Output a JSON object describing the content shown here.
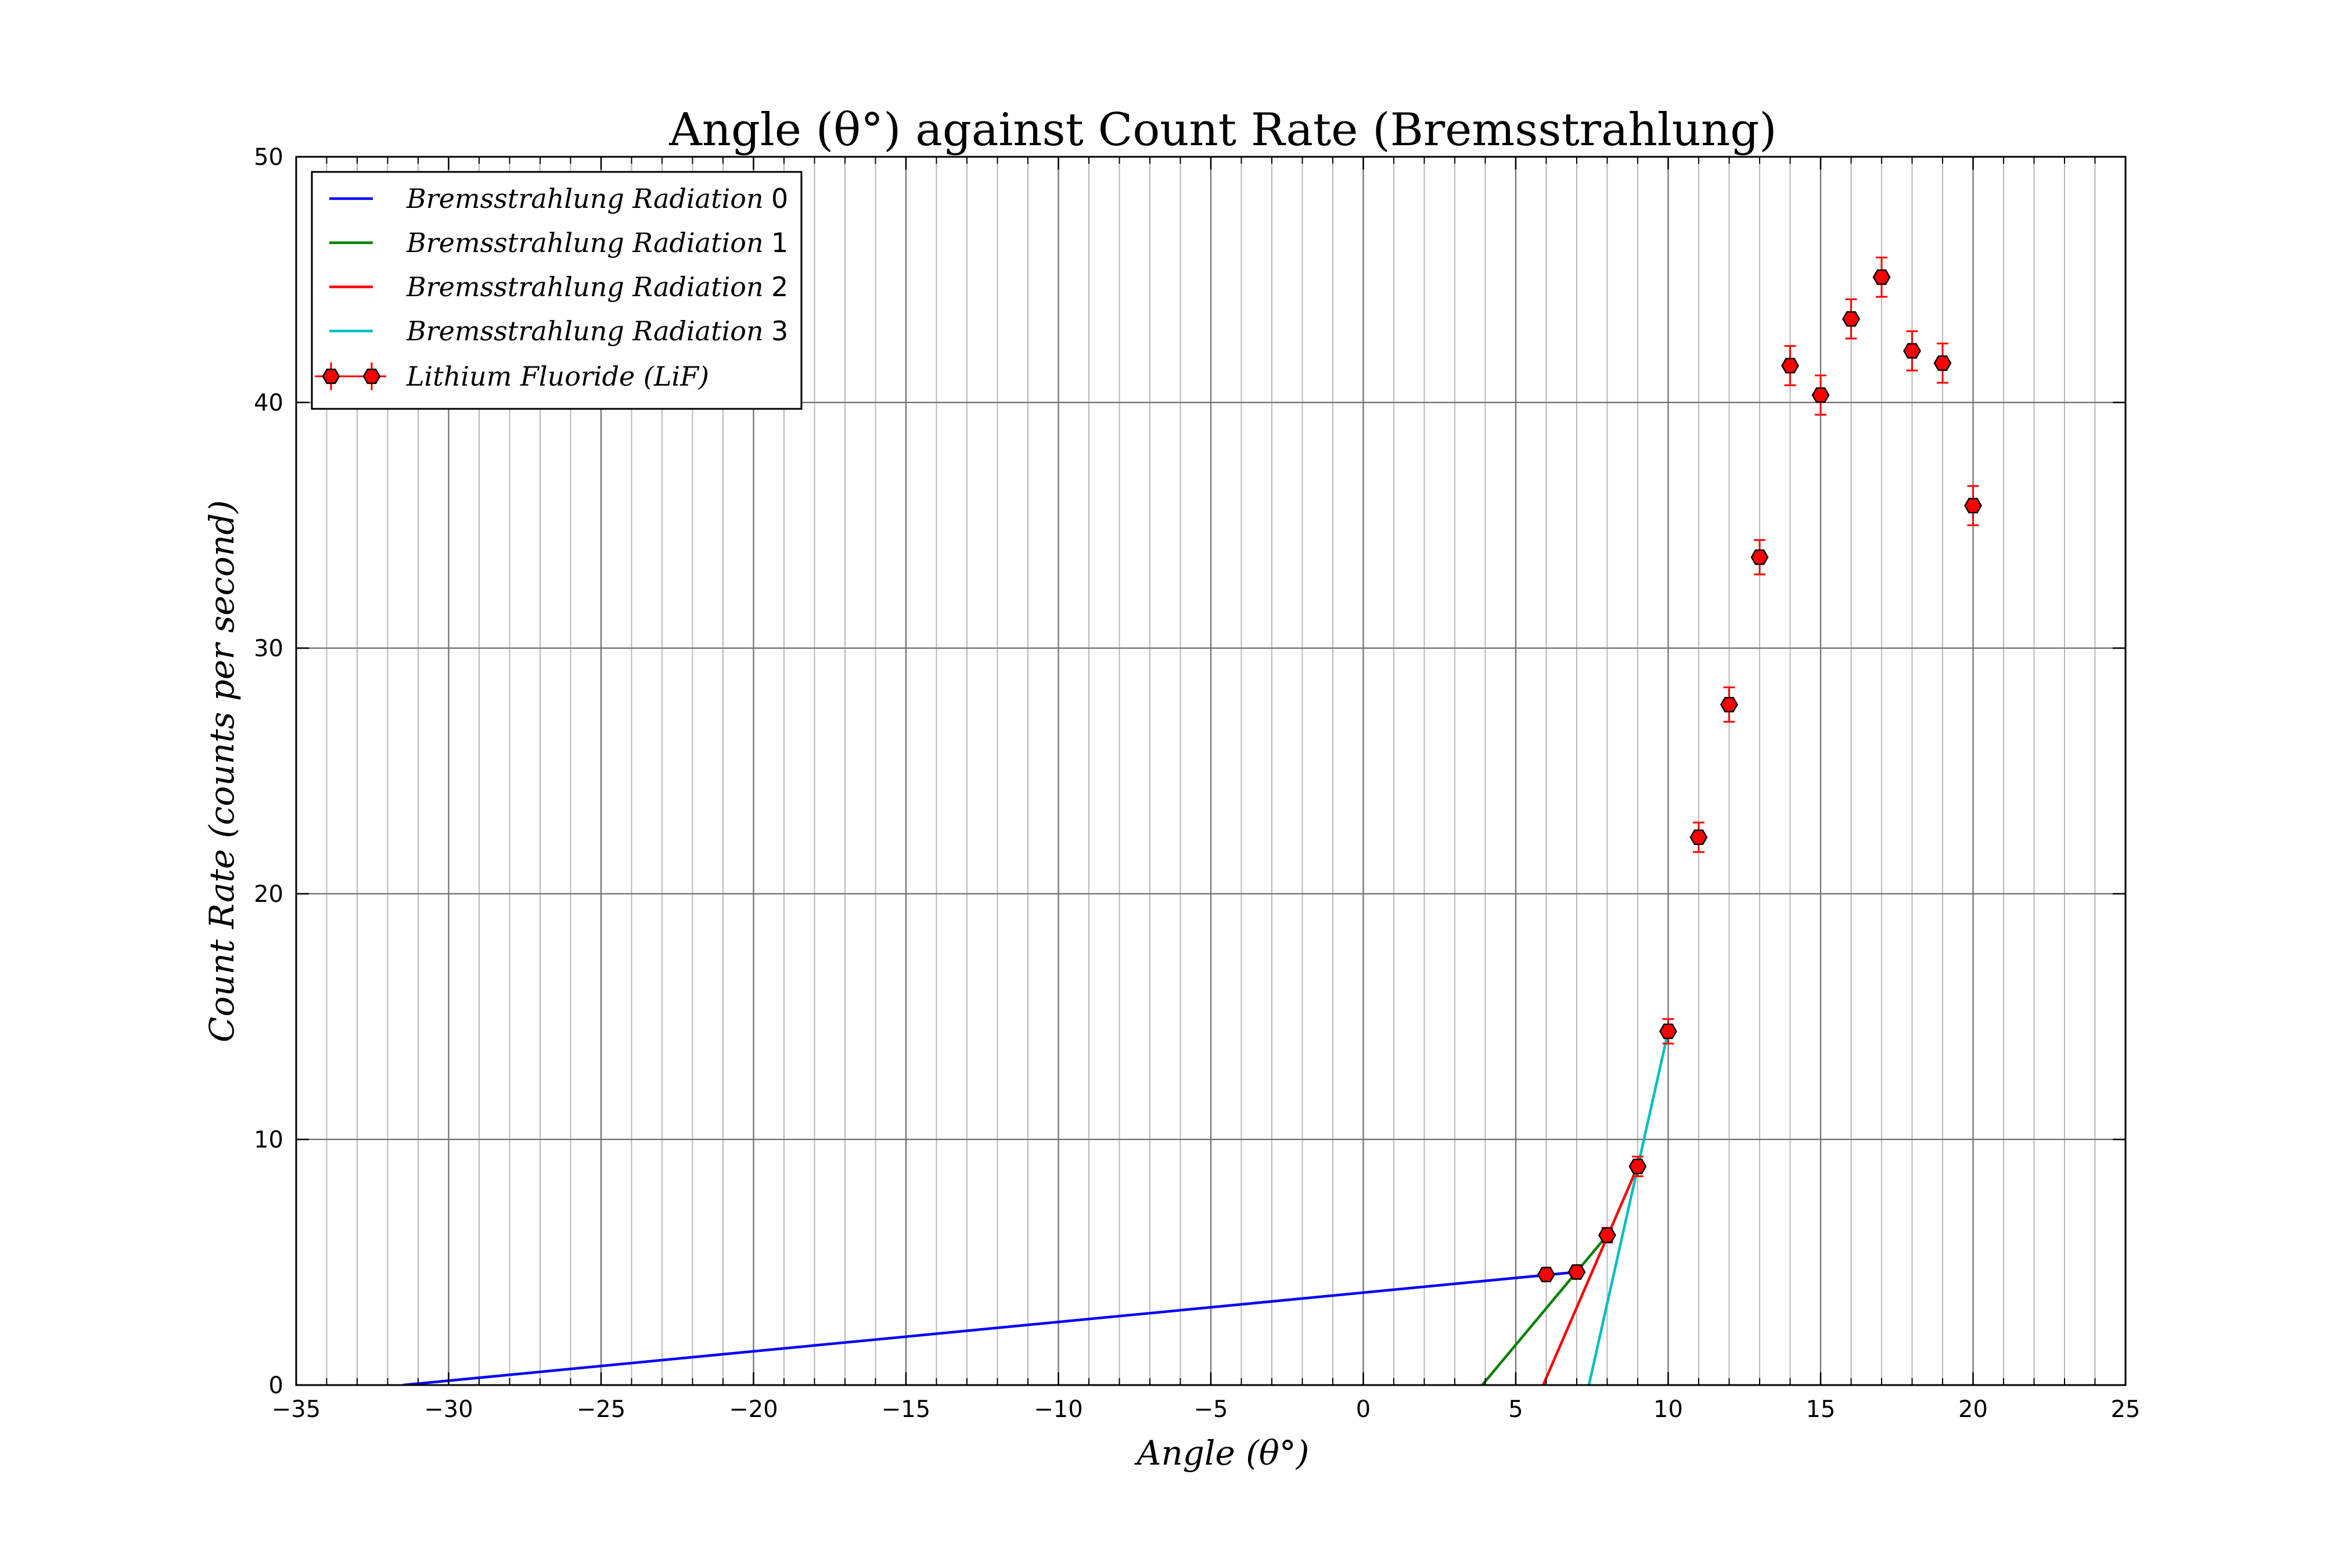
{
  "chart_data": {
    "type": "scatter",
    "title": "Angle (θ°) against Count Rate (Bremsstrahlung)",
    "xlabel": "Angle (θ°)",
    "ylabel": "Count Rate (counts per second)",
    "xlim": [
      -35,
      25
    ],
    "ylim": [
      0,
      50
    ],
    "x_major_ticks": [
      -35,
      -30,
      -25,
      -20,
      -15,
      -10,
      -5,
      0,
      5,
      10,
      15,
      20,
      25
    ],
    "x_tick_labels": [
      "−35",
      "−30",
      "−25",
      "−20",
      "−15",
      "−10",
      "−5",
      "0",
      "5",
      "10",
      "15",
      "20",
      "25"
    ],
    "y_major_ticks": [
      0,
      10,
      20,
      30,
      40,
      50
    ],
    "y_tick_labels": [
      "0",
      "10",
      "20",
      "30",
      "40",
      "50"
    ],
    "x_minor_step": 1,
    "grid": true,
    "legend_position": "top-left",
    "series": [
      {
        "name": "Bremsstrahlung Radiation 0",
        "kind": "line",
        "color": "#0000ff",
        "x": [
          -31.5,
          7.0
        ],
        "y": [
          0.0,
          4.6
        ]
      },
      {
        "name": "Bremsstrahlung Radiation 1",
        "kind": "line",
        "color": "#008000",
        "x": [
          3.9,
          8.0
        ],
        "y": [
          0.0,
          6.1
        ]
      },
      {
        "name": "Bremsstrahlung Radiation 2",
        "kind": "line",
        "color": "#ff0000",
        "x": [
          5.9,
          9.0
        ],
        "y": [
          0.0,
          8.9
        ]
      },
      {
        "name": "Bremsstrahlung Radiation 3",
        "kind": "line",
        "color": "#00bfbf",
        "x": [
          7.4,
          10.0
        ],
        "y": [
          0.0,
          14.4
        ]
      },
      {
        "name": "Lithium Fluoride (LiF)",
        "kind": "errorbar",
        "color": "#ff0000",
        "x": [
          6,
          7,
          8,
          9,
          10,
          11,
          12,
          13,
          14,
          15,
          16,
          17,
          18,
          19,
          20
        ],
        "y": [
          4.5,
          4.6,
          6.1,
          8.9,
          14.4,
          22.3,
          27.7,
          33.7,
          41.5,
          40.3,
          43.4,
          45.1,
          42.1,
          41.6,
          35.8
        ],
        "yerr": [
          0.2,
          0.2,
          0.3,
          0.4,
          0.5,
          0.6,
          0.7,
          0.7,
          0.8,
          0.8,
          0.8,
          0.8,
          0.8,
          0.8,
          0.8
        ]
      }
    ]
  },
  "legend": {
    "items": [
      {
        "label": "Bremsstrahlung Radiation",
        "index": "0"
      },
      {
        "label": "Bremsstrahlung Radiation",
        "index": "1"
      },
      {
        "label": "Bremsstrahlung Radiation",
        "index": "2"
      },
      {
        "label": "Bremsstrahlung Radiation",
        "index": "3"
      },
      {
        "label": "Lithium Fluoride (LiF)",
        "index": ""
      }
    ]
  }
}
